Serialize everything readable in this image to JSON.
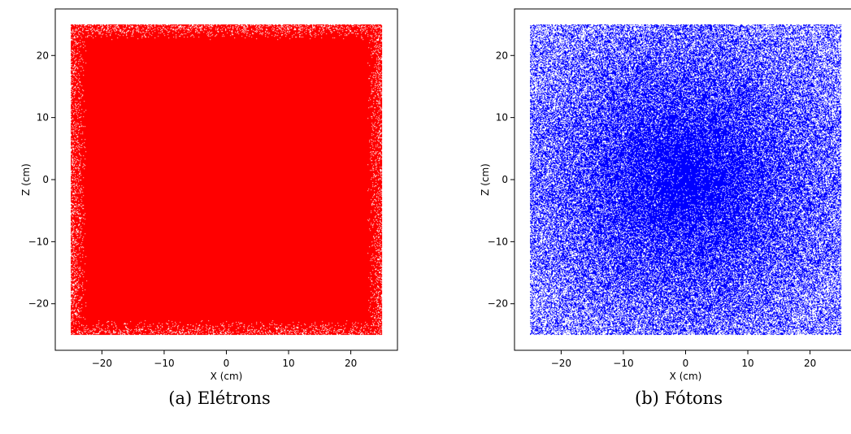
{
  "chart_data": [
    {
      "type": "scatter",
      "caption": "(a) Elétrons",
      "xlabel": "X (cm)",
      "ylabel": "Z (cm)",
      "xlim": [
        -27.5,
        27.5
      ],
      "ylim": [
        -27.5,
        27.5
      ],
      "xticks": [
        -20,
        -10,
        0,
        10,
        20
      ],
      "yticks": [
        -20,
        -10,
        0,
        10,
        20
      ],
      "xtick_labels": [
        "−20",
        "−10",
        "0",
        "10",
        "20"
      ],
      "ytick_labels": [
        "−20",
        "−10",
        "0",
        "10",
        "20"
      ],
      "grid": false,
      "color": "#ff0000",
      "distribution": "dense uniform",
      "points_extent": {
        "x": [
          -25,
          25
        ],
        "z": [
          -25,
          25
        ]
      }
    },
    {
      "type": "scatter",
      "caption": "(b) Fótons",
      "xlabel": "X (cm)",
      "ylabel": "Z (cm)",
      "xlim": [
        -27.5,
        27.5
      ],
      "ylim": [
        -27.5,
        27.5
      ],
      "xticks": [
        -20,
        -10,
        0,
        10,
        20
      ],
      "yticks": [
        -20,
        -10,
        0,
        10,
        20
      ],
      "xtick_labels": [
        "−20",
        "−10",
        "0",
        "10",
        "20"
      ],
      "ytick_labels": [
        "−20",
        "−10",
        "0",
        "10",
        "20"
      ],
      "grid": false,
      "color": "#0000ff",
      "distribution": "denser at center, sparser toward edges",
      "points_extent": {
        "x": [
          -25,
          25
        ],
        "z": [
          -25,
          25
        ]
      }
    }
  ]
}
